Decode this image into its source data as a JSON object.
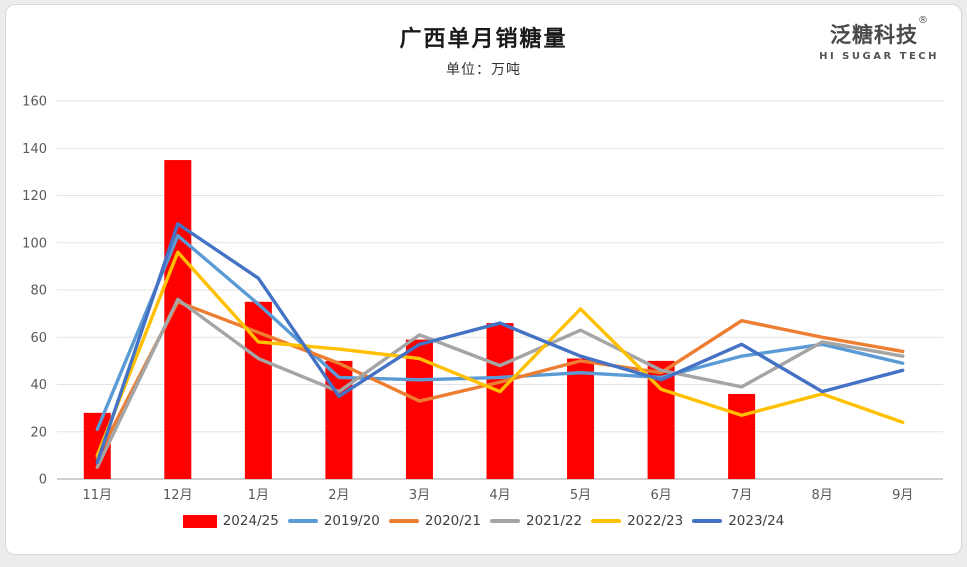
{
  "header": {
    "title": "广西单月销糖量",
    "subtitle": "单位：万吨"
  },
  "logo": {
    "brand": "泛糖科技",
    "registered": "®",
    "tagline": "HI SUGAR TECH"
  },
  "chart_data": {
    "type": "combo",
    "title": "广西单月销糖量",
    "unit_label": "单位：万吨",
    "categories": [
      "11月",
      "12月",
      "1月",
      "2月",
      "3月",
      "4月",
      "5月",
      "6月",
      "7月",
      "8月",
      "9月"
    ],
    "series": [
      {
        "name": "2024/25",
        "type": "bar",
        "color": "#FE0000",
        "values": [
          28,
          135,
          75,
          50,
          59,
          66,
          51,
          50,
          36,
          null,
          null
        ]
      },
      {
        "name": "2019/20",
        "type": "line",
        "color": "#5B9BD5",
        "values": [
          21,
          103,
          74,
          43,
          42,
          43,
          45,
          43,
          52,
          57,
          49
        ]
      },
      {
        "name": "2020/21",
        "type": "line",
        "color": "#ED7D31",
        "values": [
          9,
          75,
          62,
          49,
          33,
          41,
          50,
          45,
          67,
          60,
          54
        ]
      },
      {
        "name": "2021/22",
        "type": "line",
        "color": "#A5A5A5",
        "values": [
          5,
          76,
          51,
          37,
          61,
          48,
          63,
          46,
          39,
          58,
          52
        ]
      },
      {
        "name": "2022/23",
        "type": "line",
        "color": "#FFC000",
        "values": [
          10,
          96,
          58,
          55,
          51,
          37,
          72,
          38,
          27,
          36,
          24
        ]
      },
      {
        "name": "2023/24",
        "type": "line",
        "color": "#4472C4",
        "values": [
          7,
          108,
          85,
          35,
          57,
          66,
          52,
          42,
          57,
          37,
          46
        ]
      }
    ],
    "ylim": [
      0,
      160
    ],
    "ytick_step": 20,
    "grid": true,
    "legend_position": "bottom",
    "colors": {
      "grid": "#e3e3e3",
      "axis": "#bfbfbf",
      "tick_label": "#595959"
    }
  }
}
